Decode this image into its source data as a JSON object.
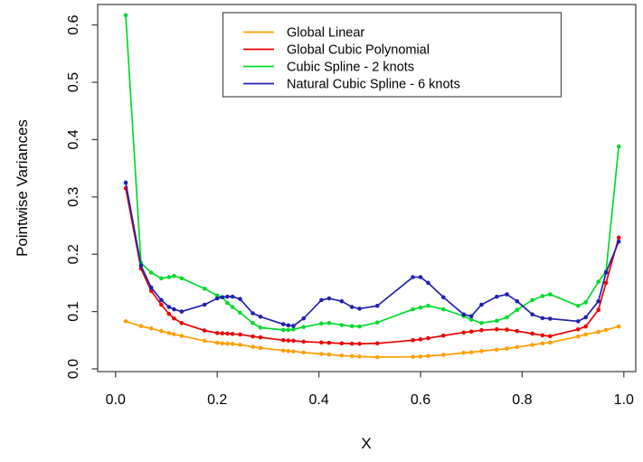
{
  "chart_data": {
    "type": "line",
    "title": "",
    "xlabel": "X",
    "ylabel": "Pointwise Variances",
    "xlim": [
      0,
      1
    ],
    "ylim": [
      0,
      0.62
    ],
    "grid": false,
    "legend_position": "top-center-inside",
    "marker": "filled-circle",
    "x_ticks": {
      "values": [
        0,
        0.2,
        0.4,
        0.6,
        0.8,
        1.0
      ],
      "labels": [
        "0.0",
        "0.2",
        "0.4",
        "0.6",
        "0.8",
        "1.0"
      ]
    },
    "y_ticks": {
      "values": [
        0,
        0.1,
        0.2,
        0.3,
        0.4,
        0.5,
        0.6
      ],
      "labels": [
        "0.0",
        "0.1",
        "0.2",
        "0.3",
        "0.4",
        "0.5",
        "0.6"
      ]
    },
    "x": [
      0.02,
      0.05,
      0.07,
      0.09,
      0.105,
      0.115,
      0.13,
      0.175,
      0.2,
      0.21,
      0.22,
      0.23,
      0.245,
      0.27,
      0.285,
      0.33,
      0.34,
      0.35,
      0.37,
      0.405,
      0.42,
      0.445,
      0.465,
      0.48,
      0.515,
      0.585,
      0.6,
      0.615,
      0.645,
      0.685,
      0.7,
      0.72,
      0.75,
      0.77,
      0.79,
      0.82,
      0.84,
      0.855,
      0.91,
      0.925,
      0.95,
      0.965,
      0.99
    ],
    "series": [
      {
        "name": "Global Linear",
        "color": "#ff9f00",
        "values": [
          0.083,
          0.0745,
          0.0705,
          0.066,
          0.0625,
          0.0605,
          0.0575,
          0.049,
          0.0455,
          0.0445,
          0.044,
          0.0435,
          0.042,
          0.0385,
          0.0365,
          0.032,
          0.0312,
          0.0305,
          0.0285,
          0.026,
          0.025,
          0.0232,
          0.0222,
          0.0215,
          0.0205,
          0.021,
          0.0215,
          0.0225,
          0.0245,
          0.028,
          0.029,
          0.031,
          0.0335,
          0.0355,
          0.038,
          0.042,
          0.0445,
          0.046,
          0.0565,
          0.06,
          0.0645,
          0.068,
          0.074
        ]
      },
      {
        "name": "Global Cubic Polynomial",
        "color": "#ec0000",
        "values": [
          0.315,
          0.175,
          0.136,
          0.112,
          0.096,
          0.088,
          0.08,
          0.067,
          0.0625,
          0.062,
          0.0615,
          0.061,
          0.06,
          0.0565,
          0.055,
          0.05,
          0.0495,
          0.049,
          0.0475,
          0.046,
          0.0455,
          0.0445,
          0.044,
          0.0438,
          0.0445,
          0.05,
          0.0515,
          0.0535,
          0.058,
          0.0635,
          0.065,
          0.0675,
          0.069,
          0.0685,
          0.066,
          0.0615,
          0.0585,
          0.057,
          0.069,
          0.074,
          0.103,
          0.15,
          0.229
        ]
      },
      {
        "name": "Cubic Spline - 2 knots",
        "color": "#00db2c",
        "values": [
          0.617,
          0.185,
          0.168,
          0.158,
          0.16,
          0.162,
          0.158,
          0.14,
          0.128,
          0.125,
          0.115,
          0.108,
          0.098,
          0.08,
          0.072,
          0.068,
          0.068,
          0.069,
          0.073,
          0.079,
          0.08,
          0.0765,
          0.0745,
          0.074,
          0.081,
          0.104,
          0.107,
          0.11,
          0.104,
          0.092,
          0.086,
          0.08,
          0.084,
          0.09,
          0.103,
          0.12,
          0.127,
          0.13,
          0.11,
          0.116,
          0.152,
          0.17,
          0.388
        ]
      },
      {
        "name": "Natural Cubic Spline - 6 knots",
        "color": "#2121ae",
        "values": [
          0.325,
          0.18,
          0.142,
          0.12,
          0.108,
          0.104,
          0.1,
          0.112,
          0.123,
          0.125,
          0.126,
          0.126,
          0.122,
          0.097,
          0.091,
          0.078,
          0.076,
          0.075,
          0.088,
          0.12,
          0.123,
          0.118,
          0.108,
          0.105,
          0.11,
          0.16,
          0.16,
          0.15,
          0.125,
          0.095,
          0.092,
          0.112,
          0.126,
          0.13,
          0.118,
          0.095,
          0.0885,
          0.0875,
          0.083,
          0.09,
          0.118,
          0.168,
          0.222
        ]
      }
    ]
  }
}
